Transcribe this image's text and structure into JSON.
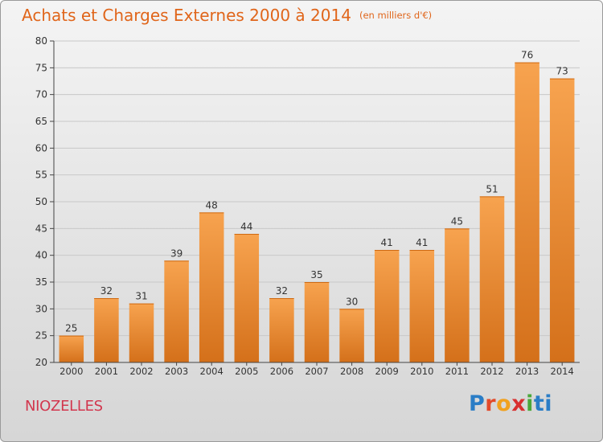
{
  "header": {
    "title": "Achats et Charges Externes 2000 à 2014",
    "unit_note": "(en milliers d'€)"
  },
  "footer": {
    "commune": "NIOZELLES",
    "logo_text": "Proxiti"
  },
  "colors": {
    "bar": "#f28a2a",
    "bar_dark": "#cf6a12",
    "title": "#e0651a",
    "commune": "#d2374e",
    "grid": "#c8c8c8"
  },
  "chart_data": {
    "type": "bar",
    "title": "Achats et Charges Externes 2000 à 2014",
    "subtitle": "(en milliers d'€)",
    "xlabel": "",
    "ylabel": "",
    "categories": [
      "2000",
      "2001",
      "2002",
      "2003",
      "2004",
      "2005",
      "2006",
      "2007",
      "2008",
      "2009",
      "2010",
      "2011",
      "2012",
      "2013",
      "2014"
    ],
    "values": [
      25,
      32,
      31,
      39,
      48,
      44,
      32,
      35,
      30,
      41,
      41,
      45,
      51,
      76,
      73
    ],
    "ylim": [
      20,
      80
    ],
    "yticks": [
      20,
      25,
      30,
      35,
      40,
      45,
      50,
      55,
      60,
      65,
      70,
      75,
      80
    ],
    "grid": true,
    "data_labels": true,
    "legend": "none"
  }
}
